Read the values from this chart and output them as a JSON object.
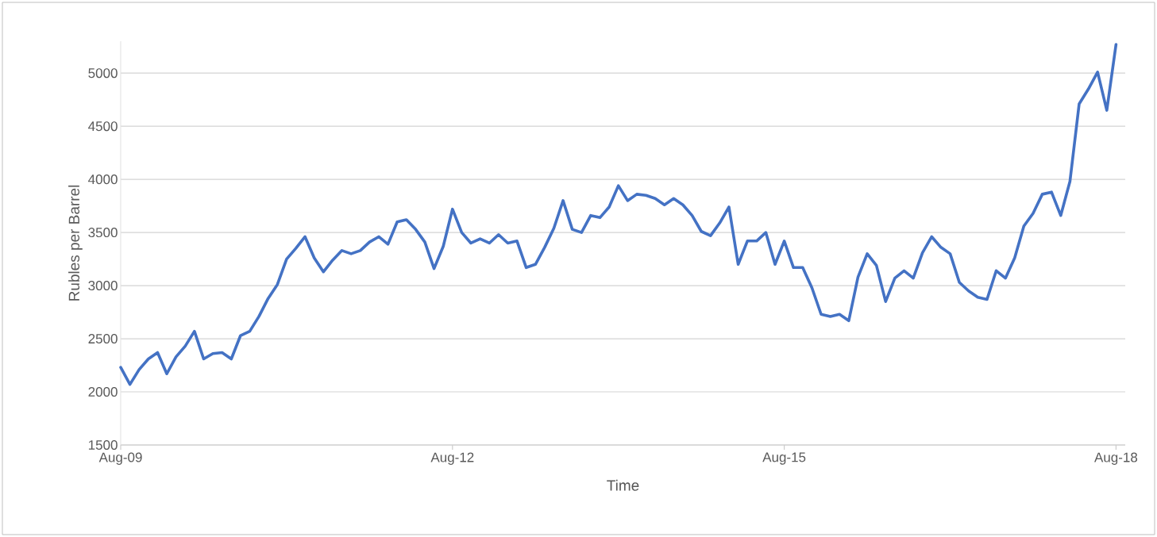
{
  "chart_data": {
    "type": "line",
    "xlabel": "Time",
    "ylabel": "Rubles per Barrel",
    "x": [
      "2009-08",
      "2009-09",
      "2009-10",
      "2009-11",
      "2009-12",
      "2010-01",
      "2010-02",
      "2010-03",
      "2010-04",
      "2010-05",
      "2010-06",
      "2010-07",
      "2010-08",
      "2010-09",
      "2010-10",
      "2010-11",
      "2010-12",
      "2011-01",
      "2011-02",
      "2011-03",
      "2011-04",
      "2011-05",
      "2011-06",
      "2011-07",
      "2011-08",
      "2011-09",
      "2011-10",
      "2011-11",
      "2011-12",
      "2012-01",
      "2012-02",
      "2012-03",
      "2012-04",
      "2012-05",
      "2012-06",
      "2012-07",
      "2012-08",
      "2012-09",
      "2012-10",
      "2012-11",
      "2012-12",
      "2013-01",
      "2013-02",
      "2013-03",
      "2013-04",
      "2013-05",
      "2013-06",
      "2013-07",
      "2013-08",
      "2013-09",
      "2013-10",
      "2013-11",
      "2013-12",
      "2014-01",
      "2014-02",
      "2014-03",
      "2014-04",
      "2014-05",
      "2014-06",
      "2014-07",
      "2014-08",
      "2014-09",
      "2014-10",
      "2014-11",
      "2014-12",
      "2015-01",
      "2015-02",
      "2015-03",
      "2015-04",
      "2015-05",
      "2015-06",
      "2015-07",
      "2015-08",
      "2015-09",
      "2015-10",
      "2015-11",
      "2015-12",
      "2016-01",
      "2016-02",
      "2016-03",
      "2016-04",
      "2016-05",
      "2016-06",
      "2016-07",
      "2016-08",
      "2016-09",
      "2016-10",
      "2016-11",
      "2016-12",
      "2017-01",
      "2017-02",
      "2017-03",
      "2017-04",
      "2017-05",
      "2017-06",
      "2017-07",
      "2017-08",
      "2017-09",
      "2017-10",
      "2017-11",
      "2017-12",
      "2018-01",
      "2018-02",
      "2018-03",
      "2018-04",
      "2018-05",
      "2018-06",
      "2018-07",
      "2018-08"
    ],
    "series": [
      {
        "color": "#4472c4",
        "values": [
          2230,
          2070,
          2210,
          2310,
          2370,
          2170,
          2330,
          2430,
          2570,
          2310,
          2360,
          2370,
          2310,
          2530,
          2570,
          2710,
          2880,
          3010,
          3250,
          3350,
          3460,
          3260,
          3130,
          3240,
          3330,
          3300,
          3330,
          3410,
          3460,
          3390,
          3600,
          3620,
          3530,
          3410,
          3160,
          3370,
          3720,
          3500,
          3400,
          3440,
          3400,
          3480,
          3400,
          3420,
          3170,
          3200,
          3360,
          3540,
          3800,
          3530,
          3500,
          3660,
          3640,
          3740,
          3940,
          3800,
          3860,
          3850,
          3820,
          3760,
          3820,
          3760,
          3660,
          3510,
          3470,
          3590,
          3740,
          3200,
          3420,
          3420,
          3500,
          3200,
          3420,
          3170,
          3170,
          2980,
          2730,
          2710,
          2730,
          2670,
          3080,
          3300,
          3190,
          2850,
          3070,
          3140,
          3070,
          3310,
          3460,
          3360,
          3300,
          3030,
          2950,
          2890,
          2870,
          3140,
          3070,
          3260,
          3560,
          3680,
          3860,
          3880,
          3660,
          3980,
          4710,
          4850,
          5010,
          4650,
          5270
        ]
      }
    ],
    "xlim": [
      "2009-08",
      "2018-09"
    ],
    "xticks": [
      {
        "value": "2009-08",
        "label": "Aug-09"
      },
      {
        "value": "2012-08",
        "label": "Aug-12"
      },
      {
        "value": "2015-08",
        "label": "Aug-15"
      },
      {
        "value": "2018-08",
        "label": "Aug-18"
      }
    ],
    "ylim": [
      1500,
      5300
    ],
    "yticks": [
      1500,
      2000,
      2500,
      3000,
      3500,
      4000,
      4500,
      5000
    ],
    "grid": "y"
  }
}
